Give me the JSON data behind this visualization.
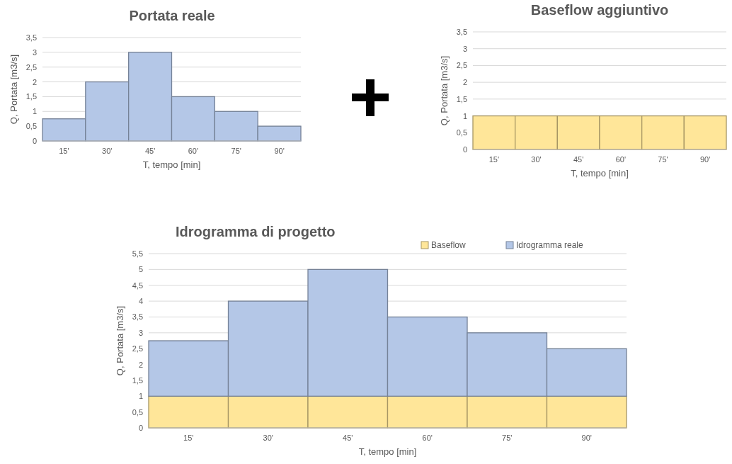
{
  "chart_data": [
    {
      "type": "bar",
      "title": "Portata reale",
      "xlabel": "T, tempo [min]",
      "ylabel": "Q, Portata [m3/s]",
      "categories": [
        "15'",
        "30'",
        "45'",
        "60'",
        "75'",
        "90'"
      ],
      "series": [
        {
          "color": "#b4c7e7",
          "values": [
            0.75,
            2,
            3,
            1.5,
            1,
            0.5
          ]
        }
      ],
      "ylim": [
        0,
        3.5
      ],
      "yticks": [
        0,
        {
          "value": 0.5,
          "label": "0,5"
        },
        1,
        {
          "value": 1.5,
          "label": "1,5"
        },
        2,
        {
          "value": 2.5,
          "label": "2,5"
        },
        3,
        {
          "value": 3.5,
          "label": "3,5"
        }
      ],
      "grid": "y",
      "legend": false
    },
    {
      "type": "bar",
      "title": "Baseflow aggiuntivo",
      "xlabel": "T, tempo [min]",
      "ylabel": "Q, Portata [m3/s]",
      "categories": [
        "15'",
        "30'",
        "45'",
        "60'",
        "75'",
        "90'"
      ],
      "series": [
        {
          "color": "#ffe699",
          "values": [
            1,
            1,
            1,
            1,
            1,
            1
          ]
        }
      ],
      "ylim": [
        0,
        3.5
      ],
      "yticks": [
        0,
        {
          "value": 0.5,
          "label": "0,5"
        },
        1,
        {
          "value": 1.5,
          "label": "1,5"
        },
        2,
        {
          "value": 2.5,
          "label": "2,5"
        },
        3,
        {
          "value": 3.5,
          "label": "3,5"
        }
      ],
      "grid": "y",
      "legend": false
    },
    {
      "type": "bar",
      "title": "Idrogramma di progetto",
      "xlabel": "T, tempo [min]",
      "ylabel": "Q, Portata [m3/s]",
      "categories": [
        "15'",
        "30'",
        "45'",
        "60'",
        "75'",
        "90'"
      ],
      "stacked": true,
      "series": [
        {
          "name": "Baseflow",
          "color": "#ffe699",
          "values": [
            1,
            1,
            1,
            1,
            1,
            1
          ]
        },
        {
          "name": "Idrogramma reale",
          "color": "#b4c7e7",
          "values": [
            1.75,
            3,
            4,
            2.5,
            2,
            1.5
          ]
        }
      ],
      "ylim": [
        0,
        5.5
      ],
      "yticks": [
        0,
        {
          "value": 0.5,
          "label": "0,5"
        },
        1,
        {
          "value": 1.5,
          "label": "1,5"
        },
        2,
        {
          "value": 2.5,
          "label": "2,5"
        },
        3,
        {
          "value": 3.5,
          "label": "3,5"
        },
        4,
        {
          "value": 4.5,
          "label": "4,5"
        },
        5,
        {
          "value": 5.5,
          "label": "5,5"
        }
      ],
      "grid": "y",
      "legend": "top right"
    }
  ]
}
